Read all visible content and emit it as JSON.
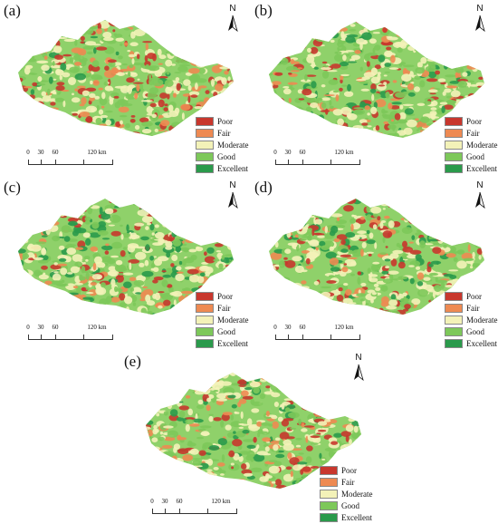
{
  "panels": [
    {
      "letter": "(a)"
    },
    {
      "letter": "(b)"
    },
    {
      "letter": "(c)"
    },
    {
      "letter": "(d)"
    },
    {
      "letter": "(e)"
    }
  ],
  "north_label": "N",
  "legend": [
    {
      "label": "Poor",
      "color": "#c8372d"
    },
    {
      "label": "Fair",
      "color": "#ee8a52"
    },
    {
      "label": "Moderate",
      "color": "#f3f2b8"
    },
    {
      "label": "Good",
      "color": "#7dc85a"
    },
    {
      "label": "Excellent",
      "color": "#2a9a4b"
    }
  ],
  "scale": {
    "ticks": [
      "0",
      "30",
      "60"
    ],
    "end_label": "120 km"
  }
}
